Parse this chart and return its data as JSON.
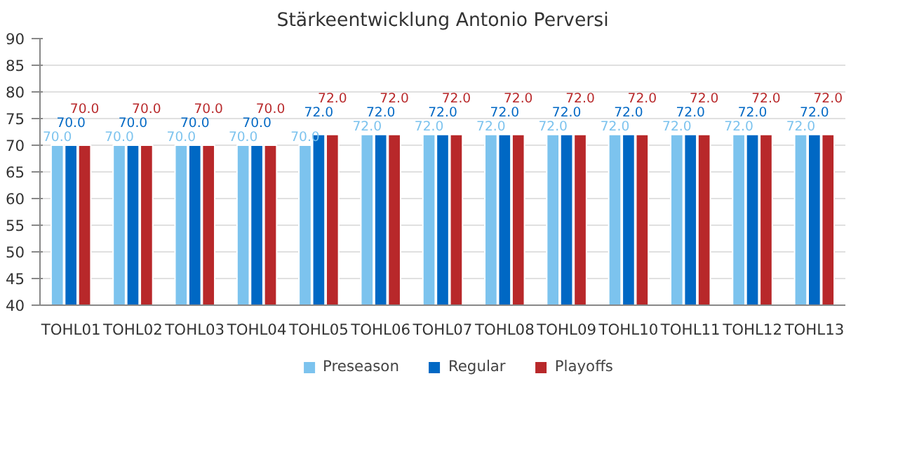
{
  "chart_data": {
    "type": "bar",
    "title": "Stärkeentwicklung Antonio Perversi",
    "categories": [
      "TOHL01",
      "TOHL02",
      "TOHL03",
      "TOHL04",
      "TOHL05",
      "TOHL06",
      "TOHL07",
      "TOHL08",
      "TOHL09",
      "TOHL10",
      "TOHL11",
      "TOHL12",
      "TOHL13"
    ],
    "series": [
      {
        "name": "Preseason",
        "color": "#7cc3ee",
        "values": [
          70,
          70,
          70,
          70,
          70,
          72,
          72,
          72,
          72,
          72,
          72,
          72,
          72
        ],
        "value_labels": [
          "70.0",
          "70.0",
          "70.0",
          "70.0",
          "70.0",
          "72.0",
          "72.0",
          "72.0",
          "72.0",
          "72.0",
          "72.0",
          "72.0",
          "72.0"
        ]
      },
      {
        "name": "Regular",
        "color": "#0068c4",
        "values": [
          70,
          70,
          70,
          70,
          72,
          72,
          72,
          72,
          72,
          72,
          72,
          72,
          72
        ],
        "value_labels": [
          "70.0",
          "70.0",
          "70.0",
          "70.0",
          "72.0",
          "72.0",
          "72.0",
          "72.0",
          "72.0",
          "72.0",
          "72.0",
          "72.0",
          "72.0"
        ]
      },
      {
        "name": "Playoffs",
        "color": "#b8282a",
        "values": [
          70,
          70,
          70,
          70,
          72,
          72,
          72,
          72,
          72,
          72,
          72,
          72,
          72
        ],
        "value_labels": [
          "70.0",
          "70.0",
          "70.0",
          "70.0",
          "72.0",
          "72.0",
          "72.0",
          "72.0",
          "72.0",
          "72.0",
          "72.0",
          "72.0",
          "72.0"
        ]
      }
    ],
    "ylim": [
      40,
      90
    ],
    "yticks": [
      40,
      45,
      50,
      55,
      60,
      65,
      70,
      75,
      80,
      85,
      90
    ],
    "grid": "y",
    "legend": "bottom"
  }
}
